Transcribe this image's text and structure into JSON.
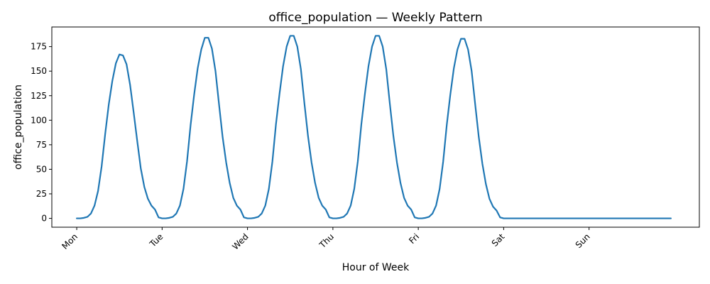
{
  "chart_data": {
    "type": "line",
    "title": "office_population — Weekly Pattern",
    "xlabel": "Hour of Week",
    "ylabel": "office_population",
    "xlim": [
      -7,
      175
    ],
    "ylim": [
      -9,
      195
    ],
    "yticks": [
      0,
      25,
      50,
      75,
      100,
      125,
      150,
      175
    ],
    "xticks": [
      {
        "value": 0,
        "label": "Mon"
      },
      {
        "value": 24,
        "label": "Tue"
      },
      {
        "value": 48,
        "label": "Wed"
      },
      {
        "value": 72,
        "label": "Thu"
      },
      {
        "value": 96,
        "label": "Fri"
      },
      {
        "value": 120,
        "label": "Sat"
      },
      {
        "value": 144,
        "label": "Sun"
      }
    ],
    "grid": false,
    "line_color": "#1f77b4",
    "series": [
      {
        "values": [
          0,
          0,
          0.5,
          1.5,
          5,
          13,
          28,
          53,
          86,
          116,
          140,
          158,
          167,
          166,
          157,
          136,
          108,
          79,
          51,
          32,
          20,
          13,
          9,
          1,
          0,
          0,
          0.5,
          1.5,
          5,
          13,
          30,
          58,
          95,
          126,
          153,
          172,
          184,
          184,
          173,
          150,
          116,
          83,
          57,
          36,
          21,
          13,
          9,
          1,
          0,
          0,
          0.5,
          1.5,
          5,
          13,
          30,
          58,
          96,
          127,
          155,
          175,
          186,
          186,
          175,
          152,
          117,
          84,
          57,
          36,
          21,
          13,
          9,
          1,
          0,
          0,
          0.5,
          1.5,
          5,
          13,
          30,
          58,
          96,
          127,
          155,
          175,
          186,
          186,
          175,
          152,
          117,
          84,
          57,
          36,
          21,
          13,
          9,
          1,
          0,
          0,
          0.5,
          1.5,
          5,
          13,
          30,
          58,
          95,
          126,
          153,
          172,
          183,
          183,
          172,
          150,
          116,
          83,
          56,
          35,
          20,
          12,
          8,
          1,
          0,
          0,
          0,
          0,
          0,
          0,
          0,
          0,
          0,
          0,
          0,
          0,
          0,
          0,
          0,
          0,
          0,
          0,
          0,
          0,
          0,
          0,
          0,
          0,
          0,
          0,
          0,
          0,
          0,
          0,
          0,
          0,
          0,
          0,
          0,
          0,
          0,
          0,
          0,
          0,
          0,
          0,
          0,
          0,
          0,
          0,
          0,
          0
        ]
      }
    ]
  }
}
